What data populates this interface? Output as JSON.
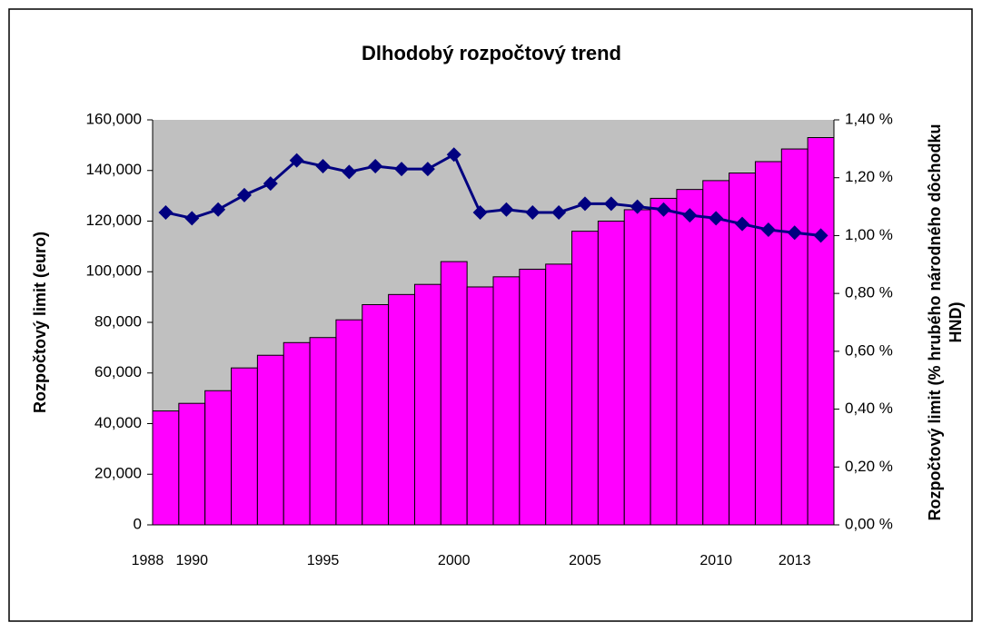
{
  "chart_data": {
    "type": "bar_line",
    "title": "Dlhodobý rozpočtový trend",
    "y_label": "Rozpočtový limit (euro)",
    "y2_label": [
      "Rozpočtový limit (% hrubého národného dôchodku",
      "HND)"
    ],
    "categories": [
      "1988",
      "1990",
      null,
      null,
      null,
      null,
      "1995",
      null,
      null,
      null,
      null,
      "2000",
      null,
      null,
      null,
      null,
      "2005",
      null,
      null,
      null,
      null,
      "2010",
      null,
      null,
      "2013",
      null
    ],
    "series": [
      {
        "type": "bar",
        "color": "#ff00ff",
        "values": [
          45000,
          48000,
          53000,
          62000,
          67000,
          72000,
          74000,
          81000,
          87000,
          91000,
          95000,
          104000,
          94000,
          98000,
          101000,
          103000,
          116000,
          120000,
          124500,
          129000,
          132500,
          136000,
          139000,
          143500,
          148500,
          153000
        ]
      },
      {
        "type": "line",
        "axis": "y2",
        "color": "#000080",
        "values": [
          1.08,
          1.06,
          1.09,
          1.14,
          1.18,
          1.26,
          1.24,
          1.22,
          1.24,
          1.23,
          1.23,
          1.28,
          1.08,
          1.09,
          1.08,
          1.08,
          1.11,
          1.11,
          1.1,
          1.09,
          1.07,
          1.06,
          1.04,
          1.02,
          1.01,
          1.0
        ]
      }
    ],
    "ylim": [
      0,
      160000
    ],
    "yticks": [
      0,
      {
        "value": 20000,
        "label": "20,000"
      },
      {
        "value": 40000,
        "label": "40,000"
      },
      {
        "value": 60000,
        "label": "60,000"
      },
      {
        "value": 80000,
        "label": "80,000"
      },
      {
        "value": 100000,
        "label": "100,000"
      },
      {
        "value": 120000,
        "label": "120,000"
      },
      {
        "value": 140000,
        "label": "140,000"
      },
      {
        "value": 160000,
        "label": "160,000"
      }
    ],
    "y2lim": [
      0,
      1.4
    ],
    "y2ticks": [
      {
        "value": 0,
        "label": "0,00 %"
      },
      {
        "value": 0.2,
        "label": "0,20 %"
      },
      {
        "value": 0.4,
        "label": "0,40 %"
      },
      {
        "value": 0.6,
        "label": "0,60 %"
      },
      {
        "value": 0.8,
        "label": "0,80 %"
      },
      {
        "value": 1.0,
        "label": "1,00 %"
      },
      {
        "value": 1.2,
        "label": "1,20 %"
      },
      {
        "value": 1.4,
        "label": "1,40 %"
      }
    ],
    "plot_background": "#c0c0c0"
  }
}
